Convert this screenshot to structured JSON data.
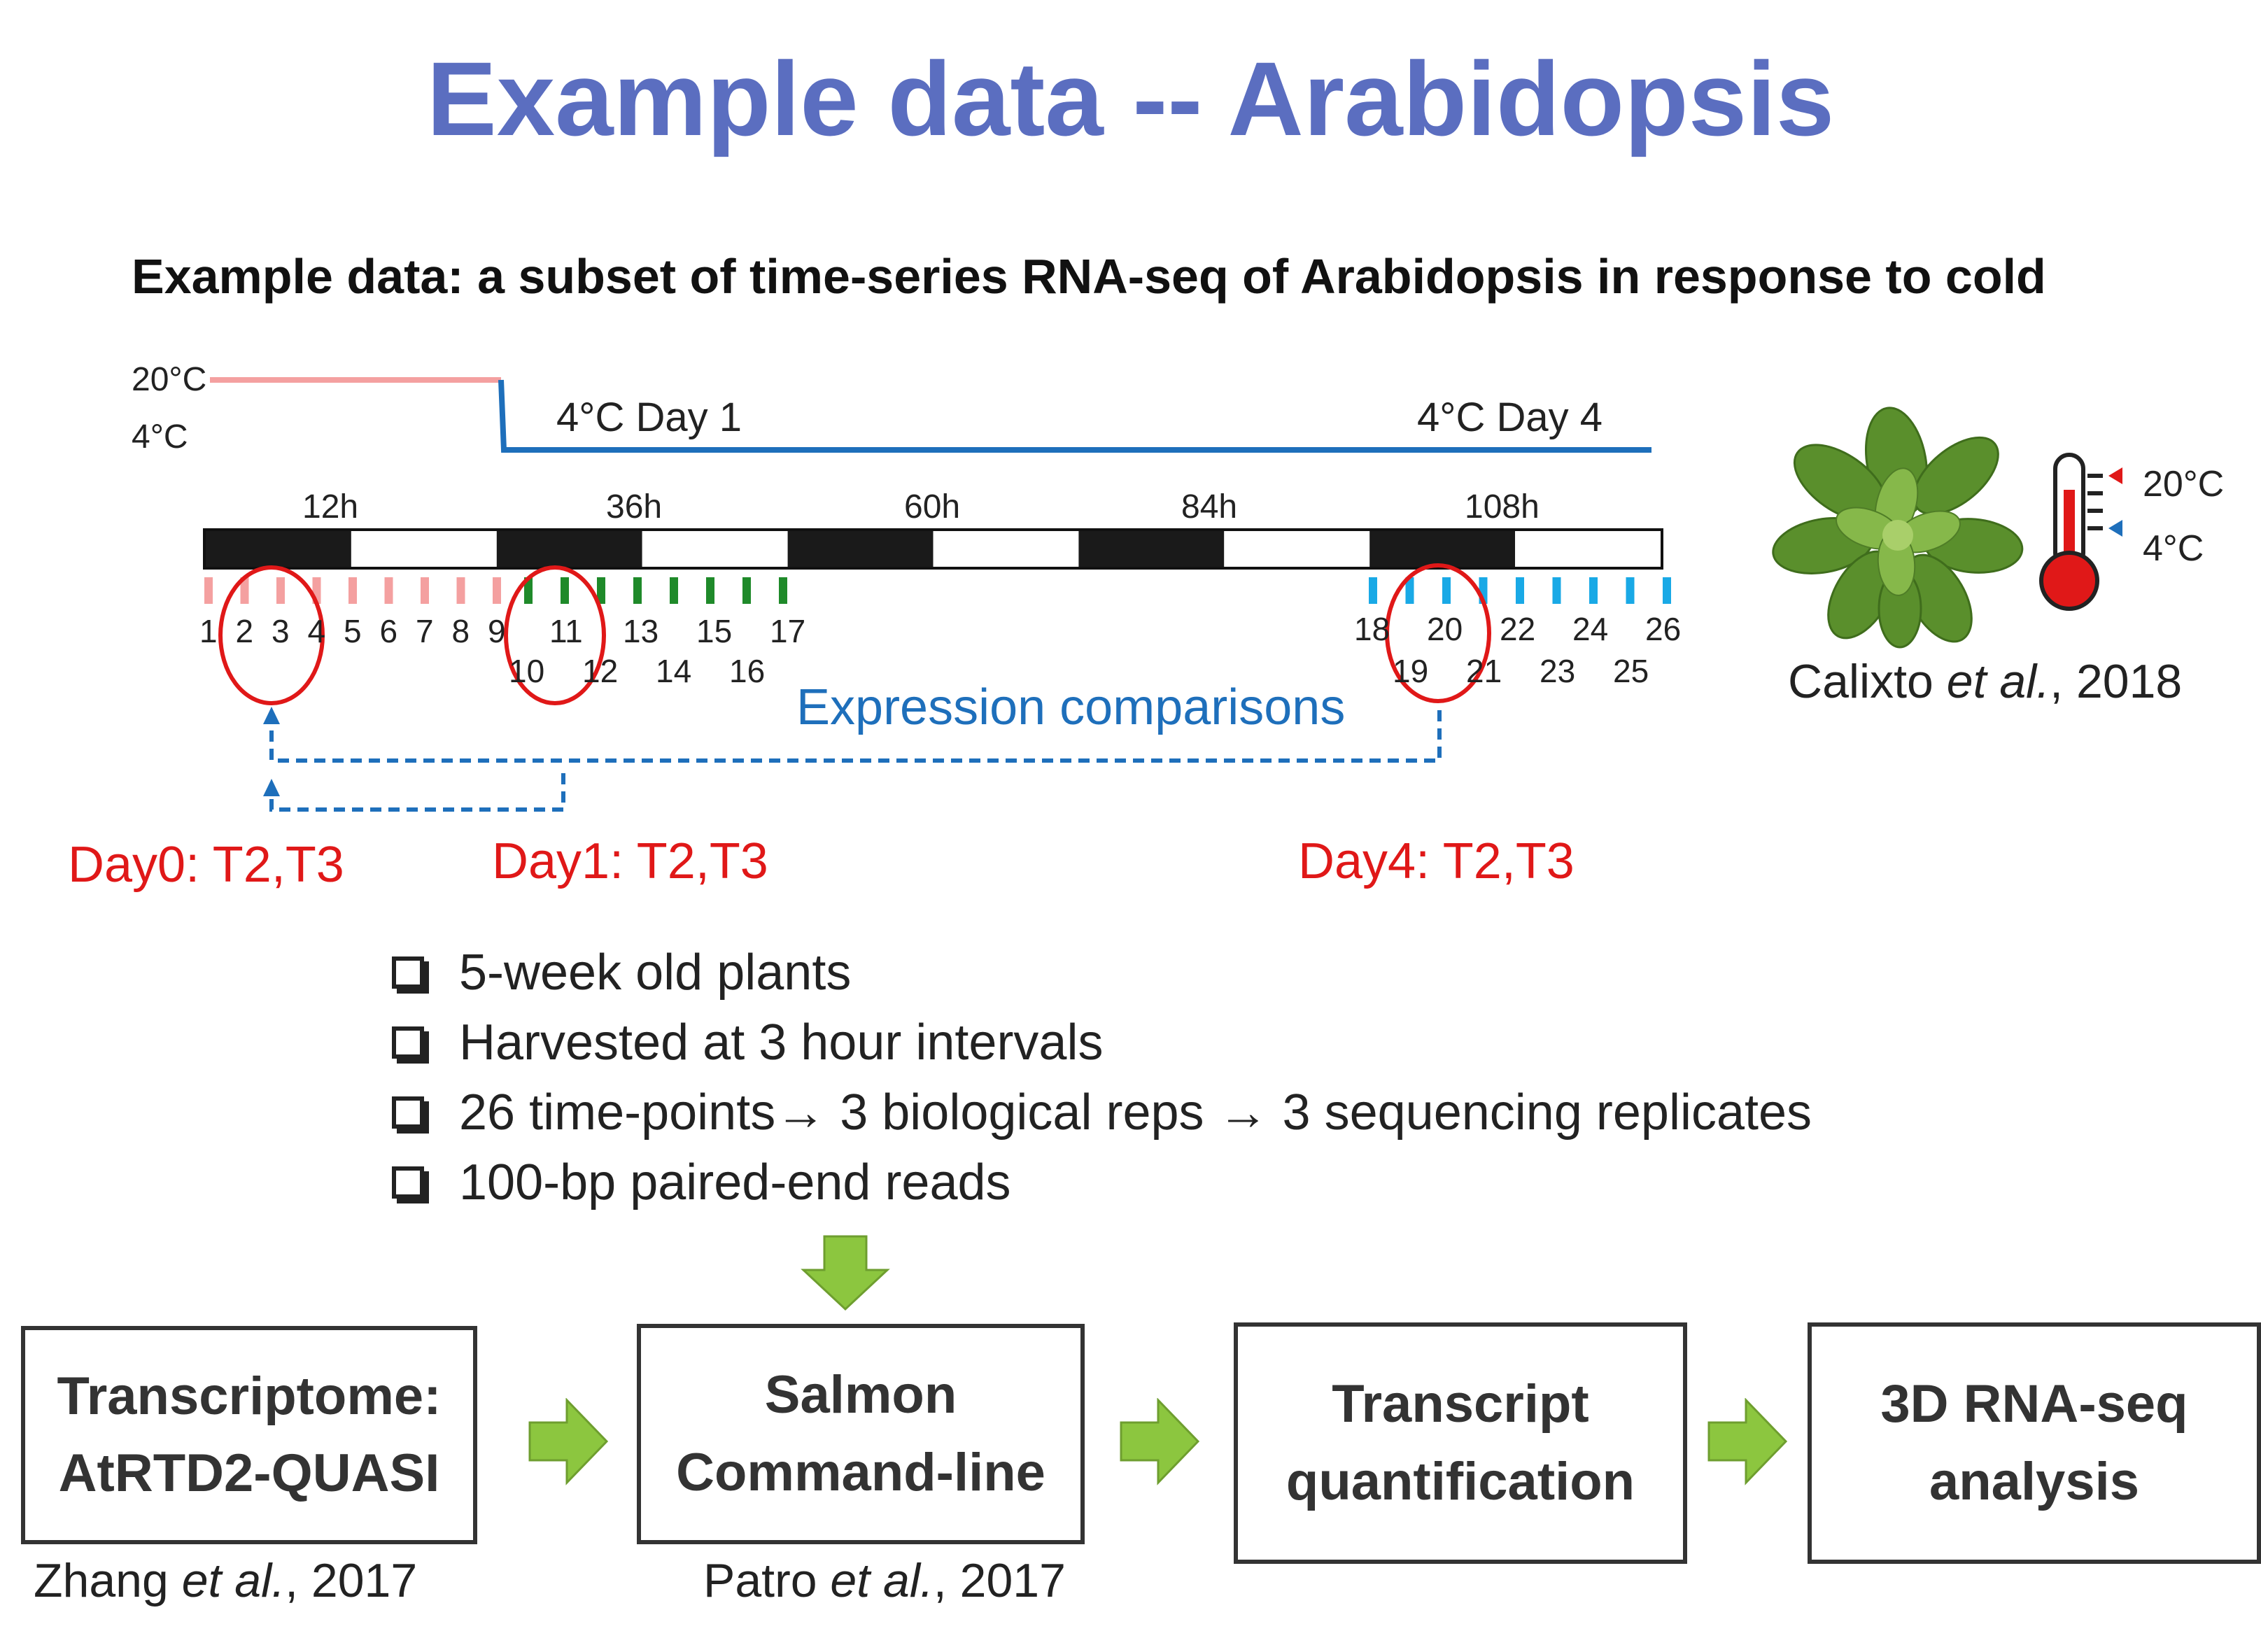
{
  "title": "Example data -- Arabidopsis",
  "subtitle": "Example data: a subset of time-series RNA-seq of Arabidopsis in response to cold",
  "temperature": {
    "high_label": "20°C",
    "low_label": "4°C",
    "day1_label": "4°C Day 1",
    "day4_label": "4°C Day 4",
    "high_color": "#f4a0a0",
    "low_color": "#1e6fbb"
  },
  "timeline": {
    "hours": [
      "12h",
      "36h",
      "60h",
      "84h",
      "108h"
    ],
    "bar_pattern": [
      "dark",
      "light",
      "dark",
      "light",
      "dark",
      "light",
      "dark",
      "light",
      "dark",
      "light"
    ],
    "tick_colors": {
      "day0": "#f4a0a0",
      "day1": "#1f8a2a",
      "day4": "#19a9e6"
    },
    "day0_ticks_top": [
      "1",
      "2",
      "3",
      "4",
      "5",
      "6",
      "7",
      "8",
      "9"
    ],
    "day1_ticks_top": [
      "11",
      "13",
      "15",
      "17"
    ],
    "day1_ticks_bottom": [
      "10",
      "12",
      "14",
      "16"
    ],
    "day4_ticks_top": [
      "18",
      "20",
      "22",
      "24",
      "26"
    ],
    "day4_ticks_bottom": [
      "19",
      "21",
      "23",
      "25"
    ]
  },
  "comparisons": {
    "label": "Expression comparisons",
    "day0": "Day0: T2,T3",
    "day1": "Day1: T2,T3",
    "day4": "Day4: T2,T3"
  },
  "plant": {
    "citation_author": "Calixto ",
    "citation_etal": "et al.",
    "citation_year": ", 2018",
    "thermo_high": "20°C",
    "thermo_low": "4°C",
    "icon": "plant-rosette-icon"
  },
  "bullets": [
    "5-week old plants",
    "Harvested at 3 hour intervals",
    "26 time-points→ 3 biological reps → 3 sequencing replicates",
    "100-bp paired-end reads"
  ],
  "pipeline": {
    "boxes": [
      {
        "line1": "Transcriptome:",
        "line2": "AtRTD2-QUASI"
      },
      {
        "line1": "Salmon",
        "line2": "Command-line"
      },
      {
        "line1": "Transcript",
        "line2": "quantification"
      },
      {
        "line1": "3D RNA-seq",
        "line2": "analysis"
      }
    ],
    "citations": [
      {
        "author": "Zhang ",
        "etal": "et al.",
        "year": ", 2017"
      },
      {
        "author": "Patro ",
        "etal": "et al.",
        "year": ", 2017"
      }
    ],
    "arrow_color": "#8cc63f"
  }
}
